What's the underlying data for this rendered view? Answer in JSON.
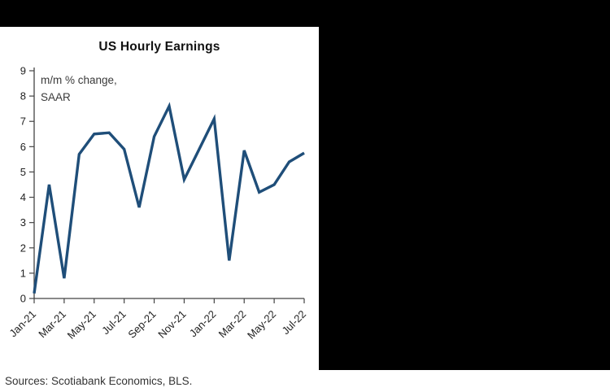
{
  "chart_data": {
    "type": "line",
    "title": "US Hourly Earnings",
    "annotation_lines": [
      "m/m % change,",
      "SAAR"
    ],
    "x": [
      "Jan-21",
      "Feb-21",
      "Mar-21",
      "Apr-21",
      "May-21",
      "Jun-21",
      "Jul-21",
      "Aug-21",
      "Sep-21",
      "Oct-21",
      "Nov-21",
      "Dec-21",
      "Jan-22",
      "Feb-22",
      "Mar-22",
      "Apr-22",
      "May-22",
      "Jun-22",
      "Jul-22"
    ],
    "values": [
      0.2,
      4.5,
      0.8,
      5.7,
      6.5,
      6.55,
      5.9,
      3.6,
      6.4,
      7.6,
      4.7,
      5.9,
      7.1,
      1.5,
      5.85,
      4.2,
      4.5,
      5.4,
      5.75
    ],
    "x_tick_labels": [
      "Jan-21",
      "Mar-21",
      "May-21",
      "Jul-21",
      "Sep-21",
      "Nov-21",
      "Jan-22",
      "Mar-22",
      "May-22",
      "Jul-22"
    ],
    "ylim": [
      0,
      9
    ],
    "y_ticks": [
      0,
      1,
      2,
      3,
      4,
      5,
      6,
      7,
      8,
      9
    ],
    "line_color": "#1F4E79",
    "axis_color": "#444444",
    "grid": false,
    "legend": false
  },
  "footer": {
    "sources": "Sources: Scotiabank Economics, BLS."
  },
  "panels": {
    "top_bar_color": "#000000",
    "right_panel_color": "#000000"
  }
}
